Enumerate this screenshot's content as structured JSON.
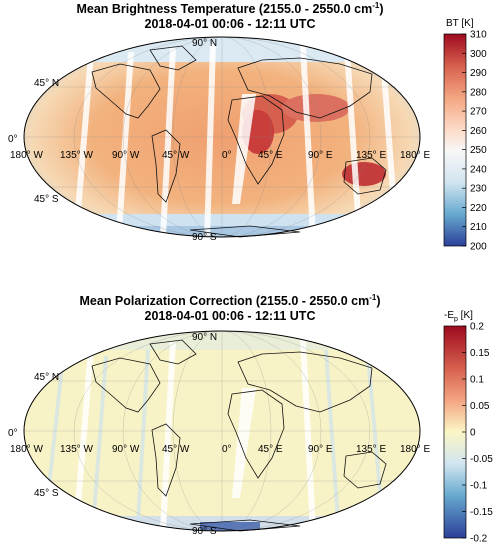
{
  "panels": [
    {
      "title_main": "Mean Brightness Temperature (2155.0 - 2550.0 cm",
      "title_sup": "-1",
      "title_close": ")",
      "subtitle": "2018-04-01 00:06 - 12:11 UTC",
      "colorbar": {
        "label": "BT [K]",
        "ticks": [
          "310",
          "300",
          "290",
          "280",
          "270",
          "260",
          "250",
          "240",
          "230",
          "220",
          "210",
          "200"
        ],
        "min": 200,
        "max": 310
      },
      "lat_labels": [
        "90° N",
        "45° N",
        "0°",
        "45° S",
        "90° S"
      ],
      "lon_labels": [
        "180° W",
        "135° W",
        "90° W",
        "45° W",
        "0°",
        "45° E",
        "90° E",
        "135° E",
        "180° E"
      ]
    },
    {
      "title_main": "Mean Polarization Correction (2155.0 - 2550.0 cm",
      "title_sup": "-1",
      "title_close": ")",
      "subtitle": "2018-04-01 00:06 - 12:11 UTC",
      "colorbar": {
        "label_main": "-E",
        "label_sub": "p",
        "label_unit": " [K]",
        "ticks": [
          "0.2",
          "0.15",
          "0.1",
          "0.05",
          "0",
          "-0.05",
          "-0.1",
          "-0.15",
          "-0.2"
        ],
        "min": -0.2,
        "max": 0.2
      },
      "lat_labels": [
        "90° N",
        "45° N",
        "0°",
        "45° S",
        "90° S"
      ],
      "lon_labels": [
        "180° W",
        "135° W",
        "90° W",
        "45° W",
        "0°",
        "45° E",
        "90° E",
        "135° E",
        "180° E"
      ]
    }
  ],
  "colors": {
    "hot": "#b2182b",
    "warm": "#ef8a62",
    "neutral": "#f7f4c8",
    "cool": "#67a9cf",
    "cold": "#2c3f99"
  }
}
